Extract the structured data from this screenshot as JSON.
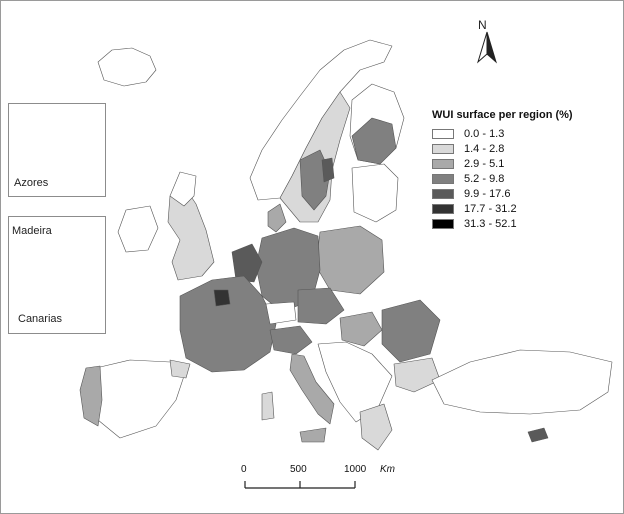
{
  "map": {
    "legend": {
      "title": "WUI surface per region (%)",
      "classes": [
        {
          "label": "0.0 - 1.3",
          "color": "#ffffff"
        },
        {
          "label": "1.4 - 2.8",
          "color": "#d9d9d9"
        },
        {
          "label": "2.9 - 5.1",
          "color": "#a9a9a9"
        },
        {
          "label": "5.2 - 9.8",
          "color": "#808080"
        },
        {
          "label": "9.9 - 17.6",
          "color": "#5a5a5a"
        },
        {
          "label": "17.7 - 31.2",
          "color": "#333333"
        },
        {
          "label": "31.3 - 52.1",
          "color": "#000000"
        }
      ]
    },
    "north_arrow": {
      "letter": "N"
    },
    "insets": {
      "azores": "Azores",
      "madeira": "Madeira",
      "canarias": "Canarias"
    },
    "scale": {
      "ticks": [
        "0",
        "500",
        "1000"
      ],
      "unit": "Km"
    }
  }
}
